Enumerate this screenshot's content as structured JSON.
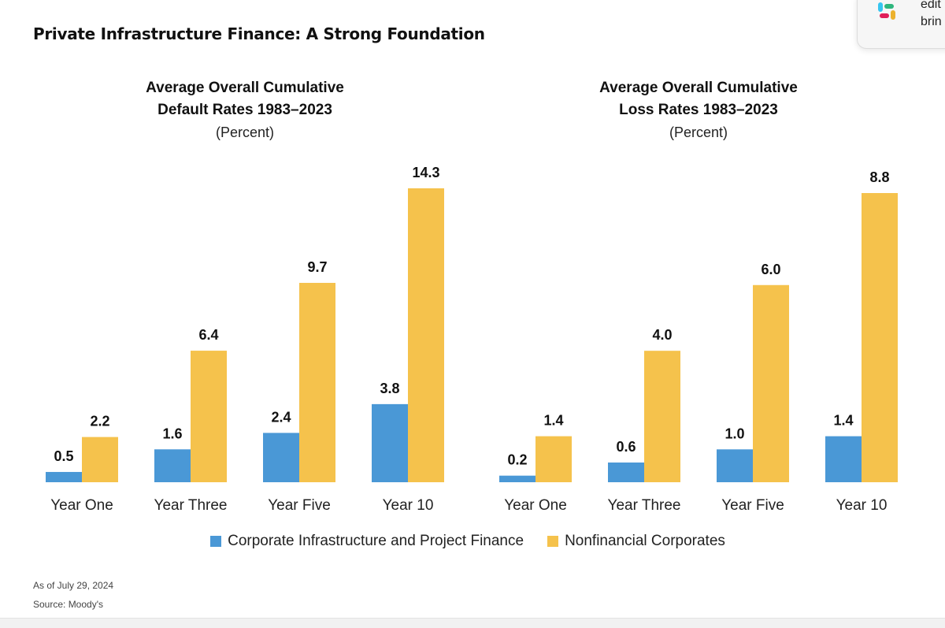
{
  "page": {
    "title": "Private Infrastructure Finance: A Strong Foundation",
    "footnote_date": "As of July 29, 2024",
    "footnote_source": "Source: Moody's"
  },
  "legend": [
    {
      "label": "Corporate Infrastructure and Project Finance",
      "color": "#4a98d6"
    },
    {
      "label": "Nonfinancial Corporates",
      "color": "#f5c24c"
    }
  ],
  "toast": {
    "icon": "slack-logo-icon",
    "line1": "edit",
    "line2": "brin"
  },
  "chart_data": [
    {
      "type": "bar",
      "title_line1": "Average Overall Cumulative",
      "title_line2": "Default Rates 1983–2023",
      "subtitle": "(Percent)",
      "categories": [
        "Year One",
        "Year Three",
        "Year Five",
        "Year 10"
      ],
      "series": [
        {
          "name": "Corporate Infrastructure and Project Finance",
          "color": "#4a98d6",
          "values": [
            0.5,
            1.6,
            2.4,
            3.8
          ],
          "labels": [
            "0.5",
            "1.6",
            "2.4",
            "3.8"
          ]
        },
        {
          "name": "Nonfinancial Corporates",
          "color": "#f5c24c",
          "values": [
            2.2,
            6.4,
            9.7,
            14.3
          ],
          "labels": [
            "2.2",
            "6.4",
            "9.7",
            "14.3"
          ]
        }
      ],
      "ylim": [
        0,
        14.3
      ],
      "grid": false
    },
    {
      "type": "bar",
      "title_line1": "Average Overall Cumulative",
      "title_line2": "Loss Rates 1983–2023",
      "subtitle": "(Percent)",
      "categories": [
        "Year One",
        "Year Three",
        "Year Five",
        "Year 10"
      ],
      "series": [
        {
          "name": "Corporate Infrastructure and Project Finance",
          "color": "#4a98d6",
          "values": [
            0.2,
            0.6,
            1.0,
            1.4
          ],
          "labels": [
            "0.2",
            "0.6",
            "1.0",
            "1.4"
          ]
        },
        {
          "name": "Nonfinancial Corporates",
          "color": "#f5c24c",
          "values": [
            1.4,
            4.0,
            6.0,
            8.8
          ],
          "labels": [
            "1.4",
            "4.0",
            "6.0",
            "8.8"
          ]
        }
      ],
      "ylim": [
        0,
        8.8
      ],
      "grid": false
    }
  ]
}
